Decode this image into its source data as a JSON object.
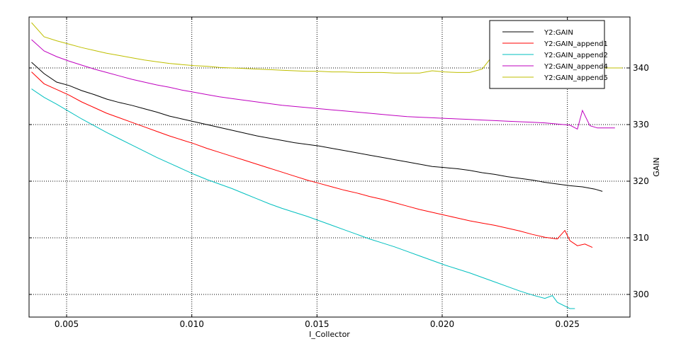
{
  "chart_data": {
    "type": "line",
    "title": "",
    "xlabel": "I_Collector",
    "ylabel": "GAIN",
    "y_axis_side": "right",
    "xlim": [
      0.0035,
      0.0275
    ],
    "ylim": [
      296,
      349
    ],
    "xticks": [
      0.005,
      0.01,
      0.015,
      0.02,
      0.025
    ],
    "xtick_labels": [
      "0.005",
      "0.010",
      "0.015",
      "0.020",
      "0.025"
    ],
    "yticks": [
      300,
      310,
      320,
      330,
      340
    ],
    "ytick_labels": [
      "300",
      "310",
      "320",
      "330",
      "340"
    ],
    "grid": true,
    "grid_style": "dotted",
    "legend_position": "top-right",
    "series": [
      {
        "name": "Y2:GAIN",
        "color": "#000000",
        "points": [
          [
            0.0036,
            341.0
          ],
          [
            0.0041,
            339.0
          ],
          [
            0.0046,
            337.5
          ],
          [
            0.0051,
            336.9
          ],
          [
            0.0056,
            336.0
          ],
          [
            0.0061,
            335.3
          ],
          [
            0.0066,
            334.5
          ],
          [
            0.0071,
            333.9
          ],
          [
            0.0076,
            333.4
          ],
          [
            0.0081,
            332.8
          ],
          [
            0.0086,
            332.2
          ],
          [
            0.0091,
            331.5
          ],
          [
            0.0096,
            331.0
          ],
          [
            0.0101,
            330.5
          ],
          [
            0.0106,
            330.0
          ],
          [
            0.0111,
            329.5
          ],
          [
            0.0116,
            329.0
          ],
          [
            0.0121,
            328.5
          ],
          [
            0.0126,
            328.0
          ],
          [
            0.0131,
            327.6
          ],
          [
            0.0136,
            327.2
          ],
          [
            0.0141,
            326.8
          ],
          [
            0.0146,
            326.5
          ],
          [
            0.0151,
            326.2
          ],
          [
            0.0156,
            325.8
          ],
          [
            0.0161,
            325.4
          ],
          [
            0.0166,
            325.0
          ],
          [
            0.0171,
            324.6
          ],
          [
            0.0176,
            324.2
          ],
          [
            0.0181,
            323.8
          ],
          [
            0.0186,
            323.4
          ],
          [
            0.0191,
            323.0
          ],
          [
            0.0196,
            322.6
          ],
          [
            0.0201,
            322.4
          ],
          [
            0.0206,
            322.2
          ],
          [
            0.0211,
            321.9
          ],
          [
            0.0216,
            321.5
          ],
          [
            0.0221,
            321.2
          ],
          [
            0.0226,
            320.8
          ],
          [
            0.0231,
            320.5
          ],
          [
            0.0236,
            320.2
          ],
          [
            0.0241,
            319.8
          ],
          [
            0.0246,
            319.5
          ],
          [
            0.0251,
            319.2
          ],
          [
            0.0256,
            319.0
          ],
          [
            0.0261,
            318.6
          ],
          [
            0.0264,
            318.2
          ]
        ]
      },
      {
        "name": "Y2:GAIN_append1",
        "color": "#ff0000",
        "points": [
          [
            0.0036,
            339.3
          ],
          [
            0.0041,
            337.2
          ],
          [
            0.0046,
            336.2
          ],
          [
            0.0051,
            335.2
          ],
          [
            0.0056,
            334.0
          ],
          [
            0.0061,
            333.0
          ],
          [
            0.0066,
            332.0
          ],
          [
            0.0071,
            331.2
          ],
          [
            0.0076,
            330.4
          ],
          [
            0.0081,
            329.6
          ],
          [
            0.0086,
            328.8
          ],
          [
            0.0091,
            328.0
          ],
          [
            0.0096,
            327.3
          ],
          [
            0.0101,
            326.6
          ],
          [
            0.0106,
            325.8
          ],
          [
            0.0111,
            325.1
          ],
          [
            0.0116,
            324.4
          ],
          [
            0.0121,
            323.7
          ],
          [
            0.0126,
            323.0
          ],
          [
            0.0131,
            322.3
          ],
          [
            0.0136,
            321.6
          ],
          [
            0.0141,
            320.9
          ],
          [
            0.0146,
            320.2
          ],
          [
            0.0151,
            319.6
          ],
          [
            0.0156,
            319.0
          ],
          [
            0.0161,
            318.4
          ],
          [
            0.0166,
            317.9
          ],
          [
            0.0171,
            317.3
          ],
          [
            0.0176,
            316.8
          ],
          [
            0.0181,
            316.2
          ],
          [
            0.0186,
            315.6
          ],
          [
            0.0191,
            315.0
          ],
          [
            0.0196,
            314.5
          ],
          [
            0.0201,
            314.0
          ],
          [
            0.0206,
            313.5
          ],
          [
            0.0211,
            313.0
          ],
          [
            0.0216,
            312.6
          ],
          [
            0.0221,
            312.2
          ],
          [
            0.0226,
            311.7
          ],
          [
            0.0231,
            311.2
          ],
          [
            0.0236,
            310.6
          ],
          [
            0.0241,
            310.1
          ],
          [
            0.0246,
            309.8
          ],
          [
            0.0249,
            311.3
          ],
          [
            0.0251,
            309.5
          ],
          [
            0.0254,
            308.6
          ],
          [
            0.0257,
            308.9
          ],
          [
            0.026,
            308.3
          ]
        ]
      },
      {
        "name": "Y2:GAIN_append2",
        "color": "#00bfbf",
        "points": [
          [
            0.0036,
            336.3
          ],
          [
            0.0041,
            334.8
          ],
          [
            0.0046,
            333.6
          ],
          [
            0.0051,
            332.3
          ],
          [
            0.0056,
            331.0
          ],
          [
            0.0061,
            329.8
          ],
          [
            0.0066,
            328.6
          ],
          [
            0.0071,
            327.5
          ],
          [
            0.0076,
            326.4
          ],
          [
            0.0081,
            325.3
          ],
          [
            0.0086,
            324.2
          ],
          [
            0.0091,
            323.2
          ],
          [
            0.0096,
            322.2
          ],
          [
            0.0101,
            321.2
          ],
          [
            0.0106,
            320.3
          ],
          [
            0.0111,
            319.5
          ],
          [
            0.0116,
            318.7
          ],
          [
            0.0121,
            317.8
          ],
          [
            0.0126,
            316.9
          ],
          [
            0.0131,
            316.0
          ],
          [
            0.0136,
            315.2
          ],
          [
            0.0141,
            314.5
          ],
          [
            0.0146,
            313.8
          ],
          [
            0.0151,
            313.0
          ],
          [
            0.0156,
            312.2
          ],
          [
            0.0161,
            311.4
          ],
          [
            0.0166,
            310.6
          ],
          [
            0.0171,
            309.8
          ],
          [
            0.0176,
            309.1
          ],
          [
            0.0181,
            308.4
          ],
          [
            0.0186,
            307.6
          ],
          [
            0.0191,
            306.8
          ],
          [
            0.0196,
            306.0
          ],
          [
            0.0201,
            305.2
          ],
          [
            0.0206,
            304.5
          ],
          [
            0.0211,
            303.8
          ],
          [
            0.0216,
            303.0
          ],
          [
            0.0221,
            302.2
          ],
          [
            0.0226,
            301.4
          ],
          [
            0.0231,
            300.6
          ],
          [
            0.0236,
            299.9
          ],
          [
            0.0241,
            299.3
          ],
          [
            0.0244,
            299.8
          ],
          [
            0.0246,
            298.6
          ],
          [
            0.0251,
            297.5
          ],
          [
            0.0253,
            297.5
          ]
        ]
      },
      {
        "name": "Y2:GAIN_append4",
        "color": "#bf00bf",
        "points": [
          [
            0.0036,
            345.0
          ],
          [
            0.0041,
            343.0
          ],
          [
            0.0046,
            342.0
          ],
          [
            0.0051,
            341.2
          ],
          [
            0.0056,
            340.5
          ],
          [
            0.0061,
            339.8
          ],
          [
            0.0066,
            339.2
          ],
          [
            0.0071,
            338.6
          ],
          [
            0.0076,
            338.0
          ],
          [
            0.0081,
            337.5
          ],
          [
            0.0086,
            337.0
          ],
          [
            0.0091,
            336.6
          ],
          [
            0.0096,
            336.1
          ],
          [
            0.0101,
            335.7
          ],
          [
            0.0106,
            335.3
          ],
          [
            0.0111,
            334.9
          ],
          [
            0.0116,
            334.6
          ],
          [
            0.0121,
            334.3
          ],
          [
            0.0126,
            334.0
          ],
          [
            0.0131,
            333.7
          ],
          [
            0.0136,
            333.4
          ],
          [
            0.0141,
            333.2
          ],
          [
            0.0146,
            333.0
          ],
          [
            0.0151,
            332.8
          ],
          [
            0.0156,
            332.6
          ],
          [
            0.0161,
            332.4
          ],
          [
            0.0166,
            332.2
          ],
          [
            0.0171,
            332.0
          ],
          [
            0.0176,
            331.8
          ],
          [
            0.0181,
            331.6
          ],
          [
            0.0186,
            331.4
          ],
          [
            0.0191,
            331.3
          ],
          [
            0.0196,
            331.2
          ],
          [
            0.0201,
            331.1
          ],
          [
            0.0206,
            331.0
          ],
          [
            0.0211,
            330.9
          ],
          [
            0.0216,
            330.8
          ],
          [
            0.0221,
            330.7
          ],
          [
            0.0226,
            330.6
          ],
          [
            0.0231,
            330.5
          ],
          [
            0.0236,
            330.4
          ],
          [
            0.0241,
            330.3
          ],
          [
            0.0246,
            330.1
          ],
          [
            0.0251,
            329.9
          ],
          [
            0.0254,
            329.2
          ],
          [
            0.0256,
            332.5
          ],
          [
            0.0259,
            329.8
          ],
          [
            0.0262,
            329.4
          ],
          [
            0.0269,
            329.4
          ]
        ]
      },
      {
        "name": "Y2:GAIN_append5",
        "color": "#bfbf00",
        "points": [
          [
            0.0036,
            348.0
          ],
          [
            0.0041,
            345.5
          ],
          [
            0.0046,
            344.8
          ],
          [
            0.0051,
            344.2
          ],
          [
            0.0056,
            343.6
          ],
          [
            0.0061,
            343.1
          ],
          [
            0.0066,
            342.6
          ],
          [
            0.0071,
            342.2
          ],
          [
            0.0076,
            341.8
          ],
          [
            0.0081,
            341.4
          ],
          [
            0.0086,
            341.1
          ],
          [
            0.0091,
            340.8
          ],
          [
            0.0096,
            340.6
          ],
          [
            0.0101,
            340.4
          ],
          [
            0.0106,
            340.3
          ],
          [
            0.0111,
            340.1
          ],
          [
            0.0116,
            340.0
          ],
          [
            0.0121,
            339.9
          ],
          [
            0.0126,
            339.8
          ],
          [
            0.0131,
            339.7
          ],
          [
            0.0136,
            339.6
          ],
          [
            0.0141,
            339.5
          ],
          [
            0.0146,
            339.4
          ],
          [
            0.0151,
            339.4
          ],
          [
            0.0156,
            339.3
          ],
          [
            0.0161,
            339.3
          ],
          [
            0.0166,
            339.2
          ],
          [
            0.0171,
            339.2
          ],
          [
            0.0176,
            339.2
          ],
          [
            0.0181,
            339.1
          ],
          [
            0.0186,
            339.1
          ],
          [
            0.0191,
            339.1
          ],
          [
            0.0196,
            339.5
          ],
          [
            0.0201,
            339.3
          ],
          [
            0.0206,
            339.2
          ],
          [
            0.0211,
            339.2
          ],
          [
            0.0216,
            339.8
          ],
          [
            0.0219,
            341.5
          ],
          [
            0.0221,
            339.3
          ],
          [
            0.0226,
            339.6
          ],
          [
            0.0231,
            339.4
          ],
          [
            0.0236,
            341.5
          ],
          [
            0.0241,
            339.5
          ],
          [
            0.0246,
            339.8
          ],
          [
            0.0251,
            339.5
          ],
          [
            0.0256,
            339.6
          ],
          [
            0.0261,
            342.5
          ],
          [
            0.0264,
            340.0
          ],
          [
            0.0269,
            340.0
          ],
          [
            0.0272,
            340.0
          ]
        ]
      }
    ]
  }
}
